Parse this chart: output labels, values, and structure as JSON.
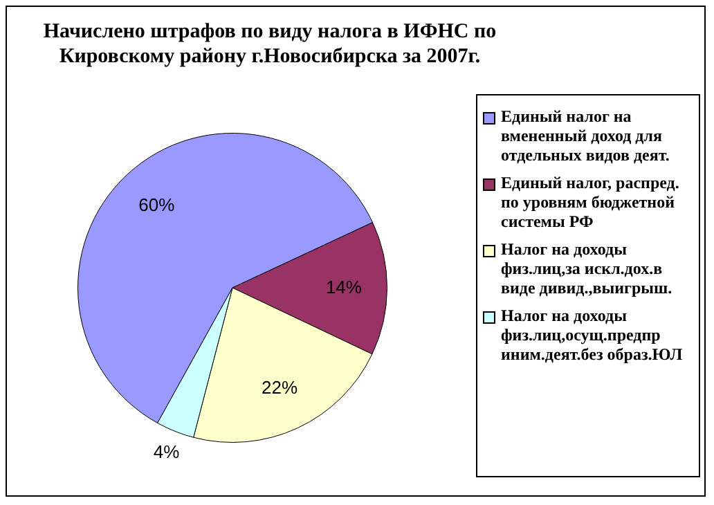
{
  "chart_data": {
    "type": "pie",
    "title": "Начислено штрафов по виду налога в ИФНС по Кировскому району г.Новосибирска за 2007г.",
    "categories": [
      "Единый налог на вмененный доход для отдельных видов деят.",
      "Единый налог, распред. по уровням бюджетной системы РФ",
      "Налог на доходы физ.лиц,за искл.дох.в виде дивид.,выигрыш.",
      "Налог на доходы физ.лиц,осущ.предпр иним.деят.без образ.ЮЛ"
    ],
    "values": [
      60,
      14,
      22,
      4
    ],
    "colors": [
      "#9999ff",
      "#993366",
      "#ffffcc",
      "#ccffff"
    ],
    "value_labels": [
      "60%",
      "14%",
      "22%",
      "4%"
    ],
    "legend": "right"
  }
}
